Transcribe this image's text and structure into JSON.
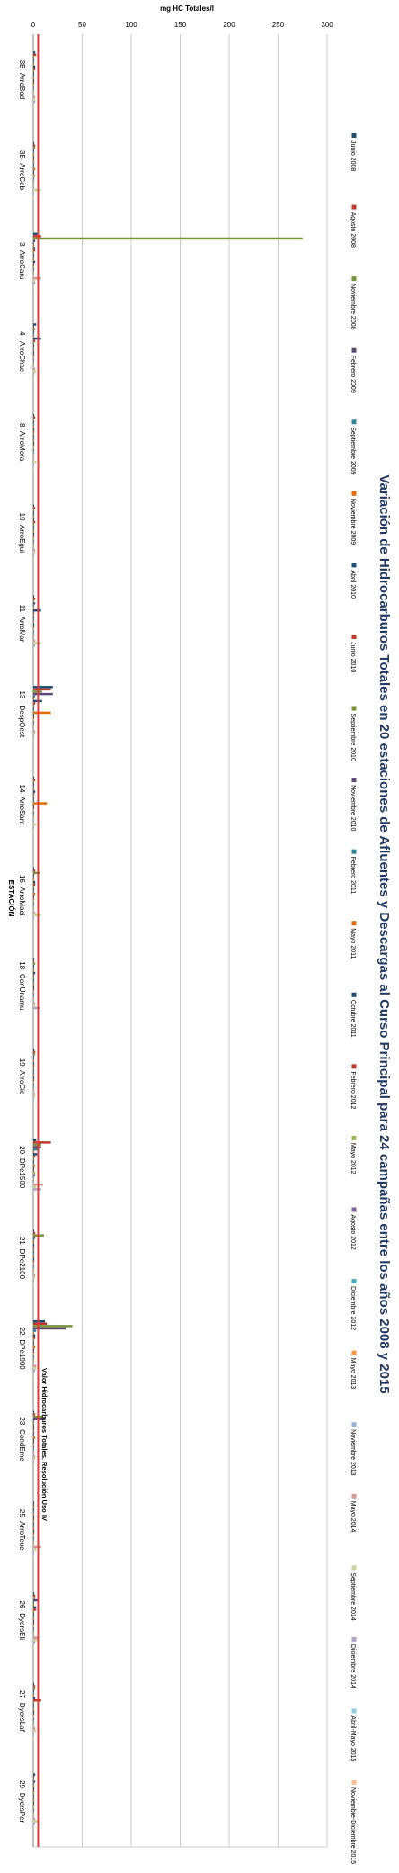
{
  "chart_data": {
    "type": "bar",
    "orientation": "horizontal",
    "title": "Variación de Hidrocarburos Totales en 20 estaciones de Afluentes y Descargas al Curso Principal para 24 campañas entre los años 2008 y 2015",
    "ylabel": "mg HC Totales/l",
    "xlabel": "ESTACIÓN",
    "ylim": [
      0,
      300
    ],
    "ticks": [
      0,
      50,
      100,
      150,
      200,
      250,
      300
    ],
    "grid": true,
    "legend_position": "right",
    "reference_line": {
      "label": "Valor Hidrocarburos Totales. Resolución Uso IV",
      "value": 5,
      "color": "#e53935"
    },
    "categories": [
      "3B- ArroBod",
      "3B- ArroCeb",
      "3- ArroCaru",
      "4 - ArroChac",
      "8- ArroMora",
      "10- ArroEgui",
      "11- ArroMar",
      "13 - DespOest",
      "14- ArroSant",
      "16- ArroMaci",
      "18- ConUnamu",
      "19- ArroCid",
      "20- DPe1500",
      "21- DPe2100",
      "22- DPe1900",
      "23- CondEmc",
      "25- ArroTeuc",
      "26- DyorsEli",
      "27- DyorsLaf",
      "29- DyorsPer"
    ],
    "series": [
      {
        "name": "Junio 2008",
        "color": "#1f4e79",
        "values": [
          2,
          1,
          4,
          3,
          1,
          1,
          1,
          20,
          1,
          1,
          1,
          1,
          3,
          1,
          12,
          1,
          1,
          1,
          1,
          2
        ]
      },
      {
        "name": "Agosto 2008",
        "color": "#c0392b",
        "values": [
          3,
          2,
          8,
          1,
          2,
          2,
          2,
          18,
          2,
          2,
          1,
          2,
          18,
          2,
          14,
          2,
          1,
          2,
          2,
          1
        ]
      },
      {
        "name": "Noviembre 2008",
        "color": "#76923c",
        "values": [
          1,
          2,
          275,
          2,
          1,
          1,
          1,
          9,
          1,
          7,
          2,
          2,
          8,
          11,
          40,
          10,
          1,
          2,
          2,
          1
        ]
      },
      {
        "name": "Febrero 2009",
        "color": "#5f497a",
        "values": [
          1,
          1,
          2,
          1,
          1,
          1,
          2,
          20,
          1,
          1,
          1,
          1,
          8,
          2,
          33,
          12,
          1,
          5,
          1,
          2
        ]
      },
      {
        "name": "Septiembre 2009",
        "color": "#31859c",
        "values": [
          1,
          1,
          1,
          1,
          1,
          1,
          1,
          2,
          1,
          1,
          1,
          1,
          6,
          1,
          3,
          1,
          1,
          1,
          1,
          1
        ]
      },
      {
        "name": "Noviembre 2009",
        "color": "#e46c0a",
        "values": [
          1,
          1,
          1,
          1,
          1,
          1,
          1,
          1,
          1,
          1,
          1,
          1,
          1,
          1,
          1,
          1,
          1,
          1,
          1,
          1
        ]
      },
      {
        "name": "Abril 2010",
        "color": "#1f4e79",
        "values": [
          2,
          1,
          2,
          8,
          1,
          1,
          8,
          9,
          2,
          2,
          2,
          1,
          4,
          1,
          2,
          1,
          1,
          3,
          2,
          1
        ]
      },
      {
        "name": "Junio 2010",
        "color": "#c0392b",
        "values": [
          2,
          1,
          2,
          2,
          1,
          2,
          1,
          2,
          1,
          2,
          1,
          1,
          2,
          1,
          2,
          1,
          1,
          3,
          8,
          1
        ]
      },
      {
        "name": "Septiembre 2010",
        "color": "#76923c",
        "values": [
          1,
          1,
          1,
          1,
          1,
          1,
          1,
          1,
          1,
          1,
          1,
          1,
          1,
          1,
          1,
          1,
          1,
          1,
          1,
          1
        ]
      },
      {
        "name": "Noviembre 2010",
        "color": "#5f497a",
        "values": [
          1,
          1,
          1,
          1,
          1,
          1,
          1,
          1,
          1,
          1,
          1,
          1,
          1,
          1,
          1,
          1,
          1,
          1,
          1,
          1
        ]
      },
      {
        "name": "Febrero 2011",
        "color": "#31859c",
        "values": [
          1,
          1,
          1,
          1,
          1,
          1,
          1,
          1,
          1,
          1,
          1,
          1,
          1,
          1,
          1,
          1,
          1,
          1,
          1,
          1
        ]
      },
      {
        "name": "Mayo 2011",
        "color": "#e46c0a",
        "values": [
          1,
          2,
          1,
          1,
          1,
          1,
          1,
          18,
          14,
          2,
          1,
          1,
          2,
          1,
          2,
          2,
          1,
          1,
          1,
          1
        ]
      },
      {
        "name": "Octubre 2011",
        "color": "#1f4e79",
        "values": [
          1,
          1,
          2,
          1,
          1,
          1,
          1,
          1,
          1,
          1,
          1,
          1,
          1,
          1,
          1,
          1,
          1,
          1,
          1,
          1
        ]
      },
      {
        "name": "Febrero 2012",
        "color": "#c0392b",
        "values": [
          1,
          1,
          1,
          1,
          1,
          1,
          1,
          1,
          1,
          1,
          1,
          1,
          1,
          1,
          1,
          1,
          1,
          1,
          1,
          1
        ]
      },
      {
        "name": "Mayo 2012",
        "color": "#9bbb59",
        "values": [
          1,
          2,
          1,
          1,
          1,
          1,
          1,
          1,
          1,
          1,
          1,
          1,
          2,
          1,
          1,
          1,
          1,
          1,
          1,
          1
        ]
      },
      {
        "name": "Agosto 2012",
        "color": "#8064a2",
        "values": [
          1,
          1,
          1,
          1,
          1,
          1,
          1,
          1,
          1,
          1,
          1,
          1,
          2,
          1,
          1,
          1,
          1,
          1,
          1,
          1
        ]
      },
      {
        "name": "Diciembre 2012",
        "color": "#4bacc6",
        "values": [
          1,
          1,
          1,
          1,
          1,
          1,
          1,
          1,
          1,
          1,
          1,
          1,
          1,
          1,
          1,
          1,
          1,
          1,
          1,
          1
        ]
      },
      {
        "name": "Mayo 2013",
        "color": "#f79646",
        "values": [
          1,
          1,
          1,
          1,
          1,
          1,
          1,
          1,
          1,
          1,
          1,
          1,
          1,
          1,
          1,
          1,
          1,
          1,
          1,
          1
        ]
      },
      {
        "name": "Noviembre 2013",
        "color": "#95b3d7",
        "values": [
          1,
          1,
          1,
          1,
          1,
          1,
          1,
          1,
          1,
          1,
          1,
          1,
          1,
          1,
          1,
          1,
          1,
          1,
          1,
          1
        ]
      },
      {
        "name": "Mayo 2014",
        "color": "#d99694",
        "values": [
          2,
          1,
          8,
          2,
          1,
          2,
          2,
          2,
          1,
          2,
          2,
          2,
          10,
          2,
          3,
          2,
          8,
          4,
          2,
          2
        ]
      },
      {
        "name": "Septiembre 2014",
        "color": "#c3d69b",
        "values": [
          2,
          8,
          2,
          3,
          3,
          2,
          8,
          2,
          3,
          8,
          2,
          2,
          3,
          2,
          3,
          2,
          3,
          4,
          3,
          6
        ]
      },
      {
        "name": "Diciembre 2014",
        "color": "#b2a2c7",
        "values": [
          2,
          1,
          2,
          1,
          1,
          1,
          2,
          1,
          1,
          1,
          7,
          1,
          8,
          1,
          2,
          1,
          1,
          2,
          1,
          2
        ]
      },
      {
        "name": "Abril-Mayo 2015",
        "color": "#92cddc",
        "values": [
          1,
          1,
          1,
          1,
          1,
          1,
          1,
          1,
          1,
          1,
          1,
          1,
          1,
          1,
          1,
          1,
          1,
          1,
          1,
          1
        ]
      },
      {
        "name": "Noviembre-Diciembre 2015",
        "color": "#fac08f",
        "values": [
          1,
          1,
          1,
          1,
          1,
          1,
          1,
          1,
          1,
          1,
          1,
          1,
          1,
          1,
          1,
          1,
          1,
          1,
          1,
          1
        ]
      }
    ]
  }
}
